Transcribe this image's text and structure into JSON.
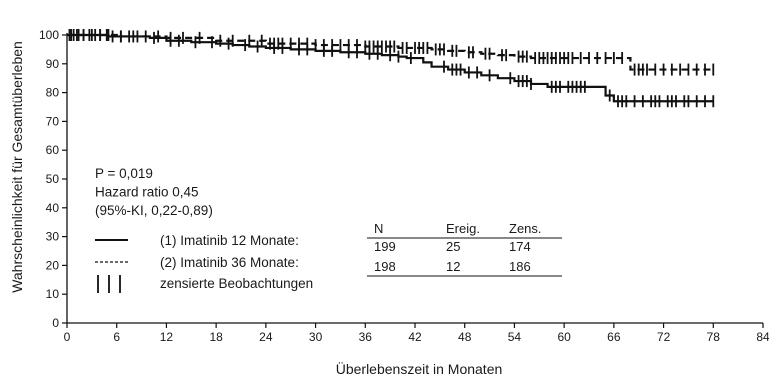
{
  "chart_data": {
    "type": "line",
    "chart_kind": "kaplan-meier survival",
    "xlabel": "Überlebenszeit in Monaten",
    "ylabel": "Wahrscheinlichkeit für Gesamtüberleben",
    "xlim": [
      0,
      84
    ],
    "ylim": [
      0,
      100
    ],
    "xticks": [
      "0",
      "6",
      "12",
      "18",
      "24",
      "30",
      "36",
      "42",
      "48",
      "54",
      "60",
      "66",
      "72",
      "78",
      "84"
    ],
    "yticks": [
      "0",
      "10",
      "20",
      "30",
      "40",
      "50",
      "60",
      "70",
      "80",
      "90",
      "100"
    ],
    "grid": false,
    "annotations": [
      "P = 0,019",
      "Hazard ratio 0,45",
      "(95%-KI, 0,22-0,89)"
    ],
    "series": [
      {
        "name": "(1) Imatinib 12 Monate:",
        "line_style": "solid",
        "color": "#111111",
        "x": [
          0,
          5,
          10,
          12,
          15,
          18,
          20,
          22,
          24,
          27,
          30,
          33,
          36,
          38,
          40,
          41,
          43,
          44,
          46,
          48,
          50,
          52,
          54,
          56,
          58,
          60,
          62,
          64,
          65,
          66,
          68,
          70,
          72,
          74,
          76,
          78
        ],
        "y": [
          100,
          99.5,
          99,
          98,
          97.5,
          97,
          96.5,
          96,
          95.5,
          95,
          94.5,
          94,
          93.5,
          93,
          92.5,
          92,
          90.5,
          89,
          88,
          87,
          86,
          85,
          84,
          83,
          82,
          82,
          82,
          82,
          79,
          77,
          77,
          77,
          77,
          77,
          77,
          77
        ],
        "censored_x": [
          0.3,
          0.8,
          1.4,
          2,
          2.7,
          3.4,
          4,
          4.8,
          5.5,
          6.5,
          7.5,
          8.5,
          10.5,
          12.5,
          13.5,
          15.5,
          17.5,
          19.5,
          21.5,
          23,
          25,
          26,
          28,
          29,
          31,
          32,
          34,
          35,
          36.5,
          37.5,
          39,
          40,
          41.5,
          45.5,
          46.5,
          47,
          47.5,
          48.5,
          49.5,
          51,
          53.5,
          54.5,
          55,
          55.5,
          56,
          58.5,
          59,
          59.5,
          60.5,
          61,
          61.5,
          62,
          62.5,
          65.5,
          66.5,
          67,
          67.5,
          68.5,
          69.5,
          70.5,
          71,
          71.5,
          72.5,
          73,
          73.5,
          74.5,
          75,
          76,
          77,
          78
        ]
      },
      {
        "name": "(2) Imatinib 36 Monate:",
        "line_style": "dashed",
        "color": "#111111",
        "x": [
          0,
          6,
          12,
          18,
          24,
          30,
          36,
          40,
          44,
          46,
          48,
          50,
          52,
          54,
          56,
          58,
          60,
          62,
          64,
          66,
          67,
          68,
          70,
          72,
          74,
          76,
          78
        ],
        "y": [
          100,
          99.5,
          99,
          98,
          97,
          96.5,
          96,
          95.5,
          95,
          94.5,
          94,
          93.5,
          93,
          92.5,
          92,
          92,
          92,
          92,
          92,
          92,
          92,
          88,
          88,
          88,
          88,
          88,
          88
        ],
        "censored_x": [
          0.5,
          1.2,
          2,
          3,
          4,
          5,
          6.5,
          8,
          9.5,
          11,
          12.5,
          14,
          16,
          18.5,
          20,
          22,
          23.5,
          24.5,
          25,
          25.5,
          26,
          27,
          28,
          29,
          30,
          31,
          32,
          33,
          34,
          35,
          36,
          36.5,
          37,
          37.5,
          38,
          38.5,
          39,
          39.5,
          40.5,
          41,
          42,
          42.5,
          43,
          43.5,
          44.5,
          45,
          45.5,
          46.5,
          47,
          48.5,
          49,
          50.5,
          51,
          52.5,
          53,
          54.5,
          55,
          55.5,
          56.5,
          57,
          57.5,
          58,
          58.5,
          59,
          59.5,
          60,
          60.5,
          61,
          62,
          63,
          64,
          65,
          66,
          67,
          68.5,
          69,
          69.5,
          70,
          71,
          72,
          73,
          74,
          75,
          76,
          77,
          78
        ]
      }
    ],
    "legend": {
      "placement": "lower-left",
      "entries": [
        {
          "marker": "solid",
          "label": "(1) Imatinib 12 Monate:"
        },
        {
          "marker": "dashed",
          "label": "(2) Imatinib 36 Monate:"
        },
        {
          "marker": "censor-ticks",
          "label": "zensierte Beobachtungen"
        }
      ]
    },
    "table": {
      "headers": [
        "N",
        "Ereig.",
        "Zens."
      ],
      "rows": [
        [
          "199",
          "25",
          "174"
        ],
        [
          "198",
          "12",
          "186"
        ]
      ]
    }
  }
}
